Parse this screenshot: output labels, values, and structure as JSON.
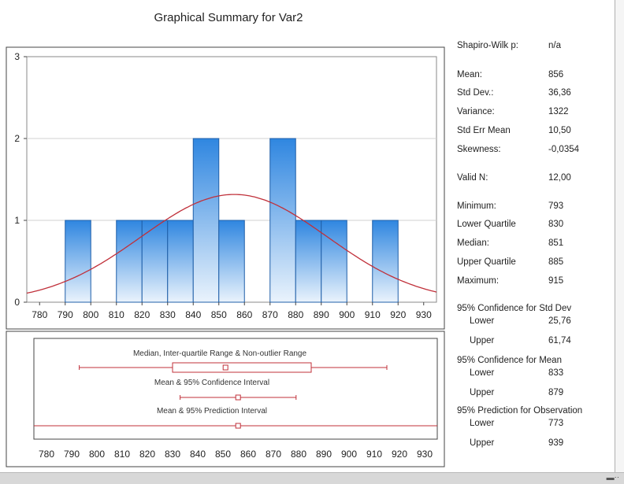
{
  "title": "Graphical Summary for Var2",
  "chart_data": {
    "type": "bar",
    "title": "Graphical Summary for Var2",
    "histogram": {
      "bins": [
        {
          "from": 790,
          "to": 800,
          "count": 1
        },
        {
          "from": 800,
          "to": 810,
          "count": 0
        },
        {
          "from": 810,
          "to": 820,
          "count": 1
        },
        {
          "from": 820,
          "to": 830,
          "count": 1
        },
        {
          "from": 830,
          "to": 840,
          "count": 1
        },
        {
          "from": 840,
          "to": 850,
          "count": 2
        },
        {
          "from": 850,
          "to": 860,
          "count": 1
        },
        {
          "from": 860,
          "to": 870,
          "count": 0
        },
        {
          "from": 870,
          "to": 880,
          "count": 2
        },
        {
          "from": 880,
          "to": 890,
          "count": 1
        },
        {
          "from": 890,
          "to": 900,
          "count": 1
        },
        {
          "from": 900,
          "to": 910,
          "count": 0
        },
        {
          "from": 910,
          "to": 920,
          "count": 1
        }
      ],
      "xlim": [
        775,
        935
      ],
      "ylim": [
        0,
        3
      ],
      "yticks": [
        "0",
        "1",
        "2",
        "3"
      ],
      "xticks": [
        "780",
        "790",
        "800",
        "810",
        "820",
        "830",
        "840",
        "850",
        "860",
        "870",
        "880",
        "890",
        "900",
        "910",
        "920",
        "930"
      ],
      "normal_curve": {
        "mean": 856,
        "std": 36.36,
        "scale_count": 12,
        "bin_width": 10
      },
      "grid": "horizontal"
    },
    "boxplot": {
      "xlim": [
        775,
        935
      ],
      "xticks": [
        "780",
        "790",
        "800",
        "810",
        "820",
        "830",
        "840",
        "850",
        "860",
        "870",
        "880",
        "890",
        "900",
        "910",
        "920",
        "930"
      ],
      "rows": [
        {
          "label": "Median, Inter-quartile Range & Non-outlier Range",
          "whisker_low": 793,
          "q1": 830,
          "median": 851,
          "q3": 885,
          "whisker_high": 915
        },
        {
          "label": "Mean & 95% Confidence Interval",
          "low": 833,
          "center": 856,
          "high": 879
        },
        {
          "label": "Mean & 95% Prediction Interval",
          "low": 773,
          "center": 856,
          "high": 939
        }
      ]
    }
  },
  "stats": {
    "shapiro": {
      "label": "Shapiro-Wilk p:",
      "value": "n/a"
    },
    "mean": {
      "label": "Mean:",
      "value": "856"
    },
    "std": {
      "label": "Std Dev.:",
      "value": "36,36"
    },
    "variance": {
      "label": "Variance:",
      "value": "1322"
    },
    "sem": {
      "label": "Std Err Mean",
      "value": "10,50"
    },
    "skew": {
      "label": "Skewness:",
      "value": "-0,0354"
    },
    "validn": {
      "label": "Valid N:",
      "value": "12,00"
    },
    "min": {
      "label": "Minimum:",
      "value": "793"
    },
    "lq": {
      "label": "Lower Quartile",
      "value": "830"
    },
    "median": {
      "label": "Median:",
      "value": "851"
    },
    "uq": {
      "label": "Upper Quartile",
      "value": "885"
    },
    "max": {
      "label": "Maximum:",
      "value": "915"
    },
    "ci_std_head": "95% Confidence for Std Dev",
    "ci_std_lower": {
      "label": "Lower",
      "value": "25,76"
    },
    "ci_std_upper": {
      "label": "Upper",
      "value": "61,74"
    },
    "ci_mean_head": "95% Confidence for Mean",
    "ci_mean_lower": {
      "label": "Lower",
      "value": "833"
    },
    "ci_mean_upper": {
      "label": "Upper",
      "value": "879"
    },
    "pi_head": "95% Prediction for Observation",
    "pi_lower": {
      "label": "Lower",
      "value": "773"
    },
    "pi_upper": {
      "label": "Upper",
      "value": "939"
    }
  },
  "colors": {
    "bar_top": "#2f86e0",
    "bar_bottom": "#eaf3fc",
    "bar_stroke": "#1f5fa8",
    "curve": "#c0303a",
    "box": "#c0303a",
    "grid": "#d0d0d0"
  },
  "icons": {
    "resize": "resize-grip-icon"
  }
}
